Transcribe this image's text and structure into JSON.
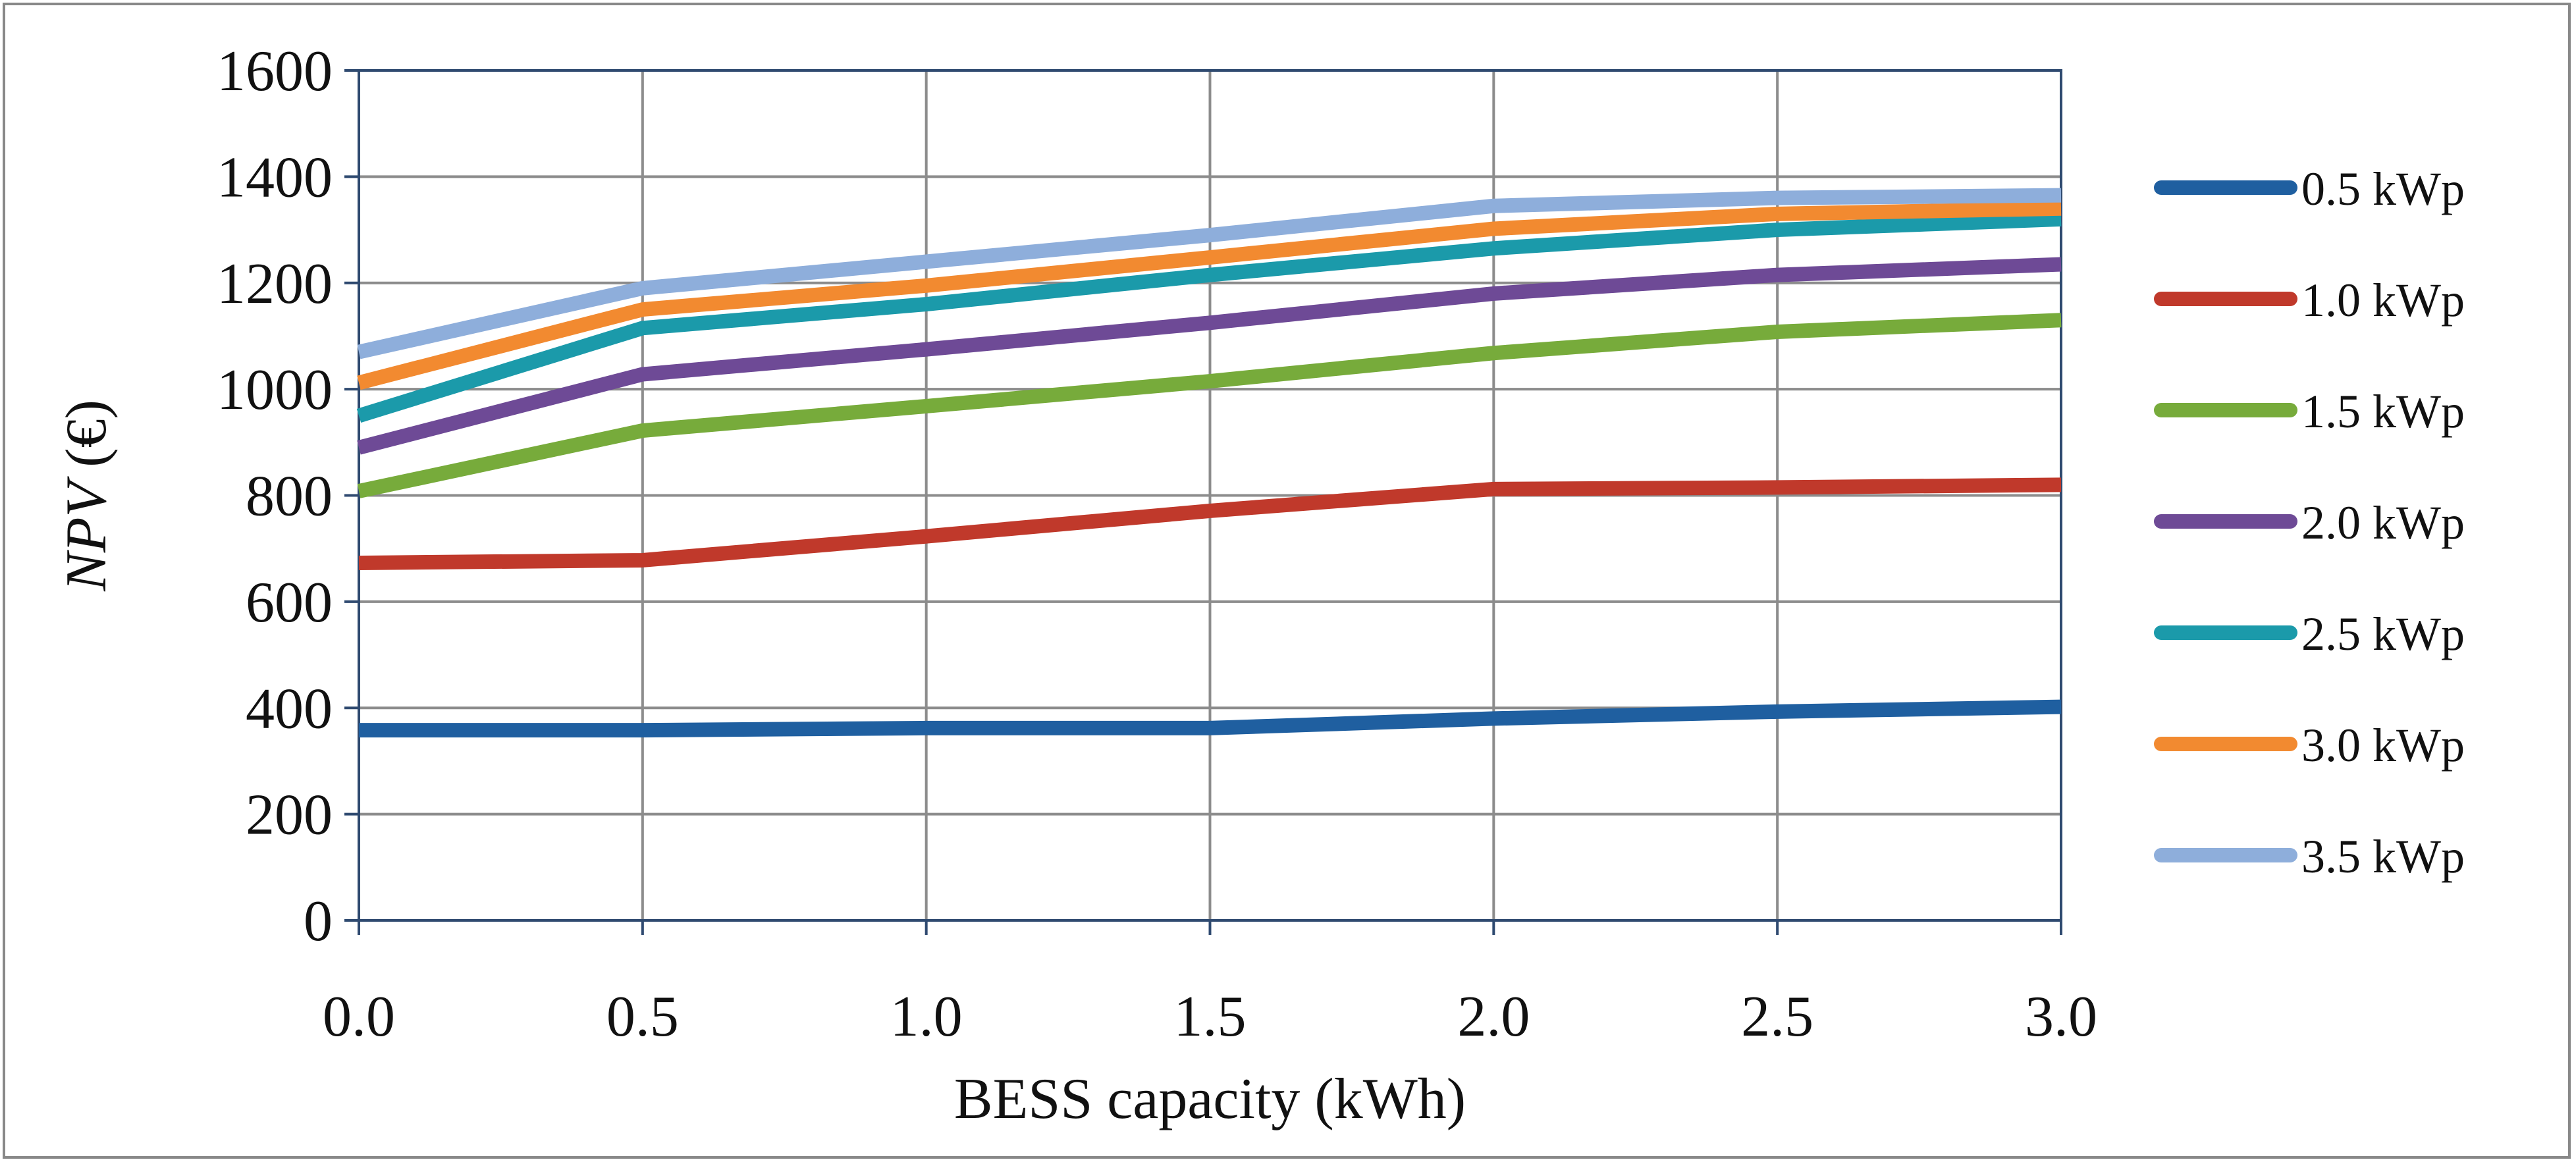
{
  "chart_data": {
    "type": "line",
    "title": "",
    "xlabel": "BESS capacity (kWh)",
    "ylabel": {
      "italic": "NPV",
      "rest": " (€)"
    },
    "x": [
      0.0,
      0.5,
      1.0,
      1.5,
      2.0,
      2.5,
      3.0
    ],
    "x_tick_labels": [
      "0.0",
      "0.5",
      "1.0",
      "1.5",
      "2.0",
      "2.5",
      "3.0"
    ],
    "y_ticks": [
      0,
      200,
      400,
      600,
      800,
      1000,
      1200,
      1400,
      1600
    ],
    "xlim": [
      0,
      3
    ],
    "ylim": [
      0,
      1600
    ],
    "grid": true,
    "legend_position": "right",
    "series": [
      {
        "name": "0.5 kWp",
        "color": "#1f5fa0",
        "values": [
          358,
          358,
          362,
          362,
          380,
          393,
          402
        ]
      },
      {
        "name": "1.0 kWp",
        "color": "#c0392b",
        "values": [
          673,
          678,
          723,
          771,
          812,
          815,
          820
        ]
      },
      {
        "name": "1.5 kWp",
        "color": "#77ab3b",
        "values": [
          808,
          922,
          968,
          1015,
          1068,
          1108,
          1130
        ]
      },
      {
        "name": "2.0 kWp",
        "color": "#6e4a96",
        "values": [
          890,
          1028,
          1075,
          1125,
          1180,
          1215,
          1235
        ]
      },
      {
        "name": "2.5 kWp",
        "color": "#1b9aaa",
        "values": [
          950,
          1115,
          1160,
          1215,
          1265,
          1300,
          1320
        ]
      },
      {
        "name": "3.0 kWp",
        "color": "#f28a30",
        "values": [
          1012,
          1150,
          1195,
          1248,
          1302,
          1330,
          1340
        ]
      },
      {
        "name": "3.5 kWp",
        "color": "#8eaedb",
        "values": [
          1070,
          1190,
          1240,
          1290,
          1345,
          1360,
          1365
        ]
      }
    ]
  }
}
